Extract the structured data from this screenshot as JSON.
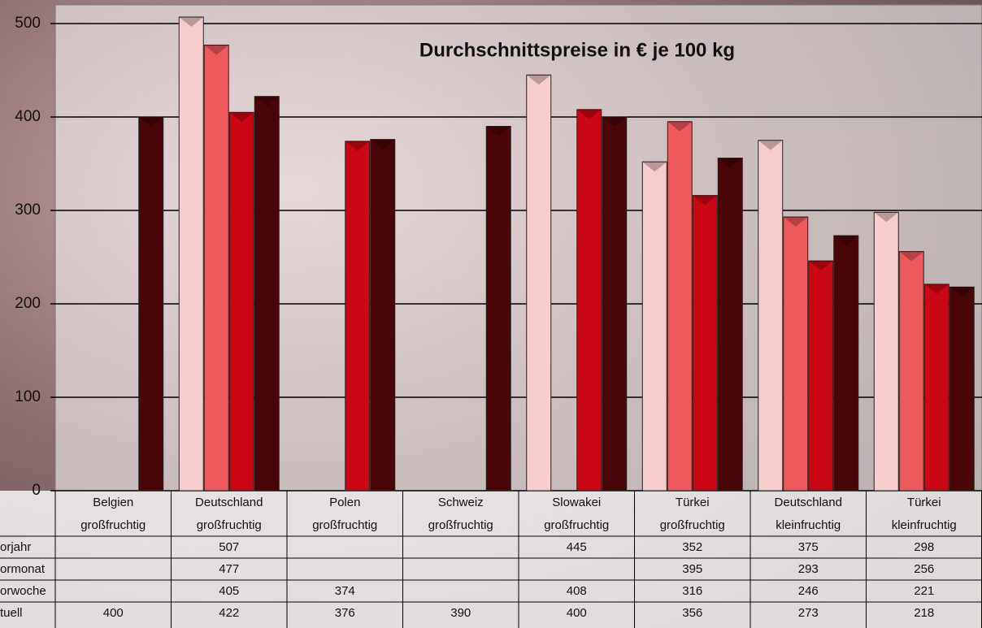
{
  "chart_data": {
    "type": "bar",
    "title": "Durchschnittspreise in € je 100 kg",
    "categories": [
      [
        "Belgien",
        "großfruchtig"
      ],
      [
        "Deutschland",
        "großfruchtig"
      ],
      [
        "Polen",
        "großfruchtig"
      ],
      [
        "Schweiz",
        "großfruchtig"
      ],
      [
        "Slowakei",
        "großfruchtig"
      ],
      [
        "Türkei",
        "großfruchtig"
      ],
      [
        "Deutschland",
        "kleinfruchtig"
      ],
      [
        "Türkei",
        "kleinfruchtig"
      ]
    ],
    "series": [
      {
        "name": "orjahr",
        "color": "#f6cccc",
        "values": [
          null,
          507,
          null,
          null,
          445,
          352,
          375,
          298
        ]
      },
      {
        "name": "ormonat",
        "color": "#ee5a5c",
        "values": [
          null,
          477,
          null,
          null,
          null,
          395,
          293,
          256
        ]
      },
      {
        "name": "orwoche",
        "color": "#cc0714",
        "values": [
          null,
          405,
          374,
          null,
          408,
          316,
          246,
          221
        ]
      },
      {
        "name": "tuell",
        "color": "#4a0509",
        "values": [
          400,
          422,
          376,
          390,
          400,
          356,
          273,
          218
        ]
      }
    ],
    "ylim": [
      0,
      520
    ],
    "yticks": [
      0,
      100,
      200,
      300,
      400,
      500
    ],
    "grid": true
  }
}
